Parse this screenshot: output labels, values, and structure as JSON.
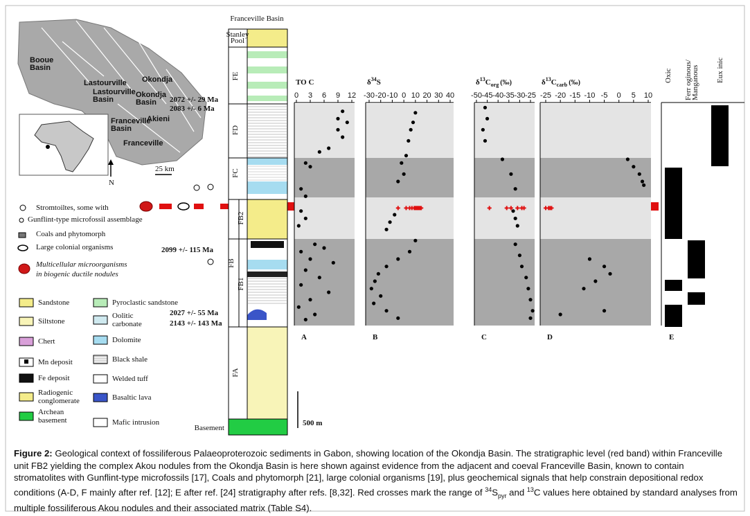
{
  "figure": {
    "map": {
      "labels": [
        [
          "Booue",
          "Basin"
        ],
        [
          "Lastourville"
        ],
        [
          "Lastourville",
          "Basin"
        ],
        [
          "Okondja"
        ],
        [
          "Okondja",
          "Basin"
        ],
        [
          "Akieni"
        ],
        [
          "Franceville",
          "Basin"
        ],
        [
          "Franceville"
        ]
      ],
      "scale": "25 km",
      "north": "N"
    },
    "column": {
      "title": "Franceville Basin",
      "units": [
        [
          "Stanley",
          "Pool"
        ],
        [
          "FE"
        ],
        [
          "FD"
        ],
        [
          "FC"
        ],
        [
          "FB2"
        ],
        [
          "FB"
        ],
        [
          "FB1"
        ],
        [
          "FA"
        ],
        [
          "Basement"
        ]
      ],
      "ages": [
        "2072 +/- 29 Ma",
        "2083 +/-  6 Ma",
        "2099 +/- 115 Ma",
        "2027 +/- 55 Ma",
        "2143 +/- 143 Ma"
      ],
      "scale_bar": "500 m"
    },
    "fossil_legend": [
      [
        "Stromtoiltes, some with"
      ],
      [
        "Gunflint-type microfossil assemblage"
      ],
      [
        "Coals and phytomorph"
      ],
      [
        "Large colonial organisms"
      ],
      [
        "Multicellular microorganisms",
        "in biogenic ductile  nodules"
      ]
    ],
    "lithology_legend": [
      [
        "Sandstone"
      ],
      [
        "Siltstone"
      ],
      [
        "Chert"
      ],
      [
        "Mn deposit"
      ],
      [
        "Fe deposit"
      ],
      [
        "Radiogenic",
        "conglomerate"
      ],
      [
        "Archean",
        "basement"
      ],
      [
        "Pyroclastic sandstone"
      ],
      [
        "Oolitic",
        "carbonate"
      ],
      [
        "Dolomite"
      ],
      [
        "Black shale"
      ],
      [
        "Welded tuff"
      ],
      [
        "Basaltic lava"
      ],
      [
        "Mafic intrusion"
      ]
    ],
    "ylim": [
      1500,
      4500
    ],
    "red_band_level": 3090,
    "panels": [
      {
        "letter": "A",
        "header": {
          "main": "TO C"
        },
        "xlim": [
          0,
          12
        ],
        "xticks": [
          0,
          3,
          6,
          9,
          12
        ],
        "points": [
          {
            "x": 10,
            "level": 4400
          },
          {
            "x": 9,
            "level": 4300
          },
          {
            "x": 11,
            "level": 4250
          },
          {
            "x": 9,
            "level": 4150
          },
          {
            "x": 10,
            "level": 4050
          },
          {
            "x": 7,
            "level": 3900
          },
          {
            "x": 5,
            "level": 3850
          },
          {
            "x": 2,
            "level": 3700
          },
          {
            "x": 3,
            "level": 3650
          },
          {
            "x": 1,
            "level": 3350
          },
          {
            "x": 2,
            "level": 3250
          },
          {
            "x": 1,
            "level": 3050
          },
          {
            "x": 2,
            "level": 2950
          },
          {
            "x": 0.5,
            "level": 2850
          },
          {
            "x": 4,
            "level": 2600
          },
          {
            "x": 6,
            "level": 2550
          },
          {
            "x": 1,
            "level": 2500
          },
          {
            "x": 3,
            "level": 2400
          },
          {
            "x": 8,
            "level": 2350
          },
          {
            "x": 2,
            "level": 2250
          },
          {
            "x": 5,
            "level": 2150
          },
          {
            "x": 1,
            "level": 2050
          },
          {
            "x": 7,
            "level": 1950
          },
          {
            "x": 3,
            "level": 1850
          },
          {
            "x": 0.5,
            "level": 1750
          },
          {
            "x": 4,
            "level": 1650
          },
          {
            "x": 2,
            "level": 1580
          }
        ],
        "red_crosses": []
      },
      {
        "letter": "B",
        "header": {
          "delta": "δ",
          "sup": "34",
          "main": "S"
        },
        "xlim": [
          -30,
          40
        ],
        "xticks": [
          -30,
          -20,
          -10,
          0,
          10,
          20,
          30,
          40
        ],
        "points": [
          {
            "x": 10,
            "level": 4380
          },
          {
            "x": 8,
            "level": 4250
          },
          {
            "x": 6,
            "level": 4150
          },
          {
            "x": 4,
            "level": 4000
          },
          {
            "x": 2,
            "level": 3800
          },
          {
            "x": -2,
            "level": 3700
          },
          {
            "x": 0,
            "level": 3550
          },
          {
            "x": -5,
            "level": 3450
          },
          {
            "x": -8,
            "level": 3000
          },
          {
            "x": -12,
            "level": 2900
          },
          {
            "x": -15,
            "level": 2800
          },
          {
            "x": 10,
            "level": 2650
          },
          {
            "x": 5,
            "level": 2500
          },
          {
            "x": -5,
            "level": 2400
          },
          {
            "x": -15,
            "level": 2300
          },
          {
            "x": -22,
            "level": 2200
          },
          {
            "x": -25,
            "level": 2100
          },
          {
            "x": -28,
            "level": 2000
          },
          {
            "x": -20,
            "level": 1900
          },
          {
            "x": -26,
            "level": 1800
          },
          {
            "x": -15,
            "level": 1700
          },
          {
            "x": -5,
            "level": 1600
          }
        ],
        "red_crosses": [
          -5,
          2,
          5,
          7,
          9,
          10,
          11,
          12,
          13,
          14,
          15
        ]
      },
      {
        "letter": "C",
        "header": {
          "delta": "δ",
          "sup": "13",
          "main": "C",
          "sub": "org",
          "unit": "(‰)"
        },
        "xlim": [
          -50,
          -25
        ],
        "xticks": [
          -50,
          -45,
          -40,
          -35,
          -30,
          -25
        ],
        "points": [
          {
            "x": -46,
            "level": 4450
          },
          {
            "x": -45,
            "level": 4300
          },
          {
            "x": -47,
            "level": 4150
          },
          {
            "x": -46,
            "level": 4000
          },
          {
            "x": -38,
            "level": 3750
          },
          {
            "x": -34,
            "level": 3550
          },
          {
            "x": -32,
            "level": 3350
          },
          {
            "x": -33,
            "level": 3050
          },
          {
            "x": -32,
            "level": 2950
          },
          {
            "x": -31,
            "level": 2850
          },
          {
            "x": -32,
            "level": 2600
          },
          {
            "x": -30,
            "level": 2450
          },
          {
            "x": -29,
            "level": 2300
          },
          {
            "x": -27,
            "level": 2150
          },
          {
            "x": -26,
            "level": 2000
          },
          {
            "x": -25,
            "level": 1850
          },
          {
            "x": -24,
            "level": 1700
          },
          {
            "x": -25,
            "level": 1600
          }
        ],
        "red_crosses": [
          -44,
          -36,
          -34,
          -31,
          -29,
          -28
        ]
      },
      {
        "letter": "D",
        "header": {
          "delta": "δ",
          "sup": "13",
          "main": "C",
          "sub": "carb",
          "unit": "(‰)"
        },
        "xlim": [
          -25,
          10
        ],
        "xticks": [
          -25,
          -20,
          -15,
          -10,
          -5,
          0,
          5,
          10
        ],
        "points": [
          {
            "x": 3,
            "level": 3750
          },
          {
            "x": 5,
            "level": 3650
          },
          {
            "x": 7,
            "level": 3550
          },
          {
            "x": 8,
            "level": 3450
          },
          {
            "x": 8.5,
            "level": 3400
          },
          {
            "x": -10,
            "level": 2400
          },
          {
            "x": -5,
            "level": 2300
          },
          {
            "x": -3,
            "level": 2200
          },
          {
            "x": -8,
            "level": 2100
          },
          {
            "x": -12,
            "level": 2000
          },
          {
            "x": -5,
            "level": 1700
          },
          {
            "x": -20,
            "level": 1650
          }
        ],
        "red_crosses": [
          -25,
          -24,
          -23.5,
          -23
        ]
      }
    ],
    "redox": {
      "letter": "E",
      "columns": [
        [
          "Oxic"
        ],
        [
          "Ferr oginous/",
          "Manganous"
        ],
        [
          "Eux inic"
        ]
      ]
    }
  },
  "caption": [
    {
      "b": "Figure 2:"
    },
    {
      "t": " Geological context of fossiliferous Palaeoproterozoic sediments in Gabon, showing location of the Okondja Basin. The stratigraphic level (red band) within Franceville unit FB2 yielding the complex Akou nodules from the Okondja Basin is here shown against evidence from the adjacent and coeval Franceville Basin, known to contain stromatolites with Gunflint-type microfossils [17], Coals and phytomorph [21], large colonial organisms [19], plus geochemical signals that help constrain depositional redox conditions (A-D, F mainly after ref. [12]; E after ref. [24] stratigraphy after refs. [8,32]. Red crosses mark the range of "
    },
    {
      "sup": "34"
    },
    {
      "t": "S"
    },
    {
      "sub": "pyr"
    },
    {
      "t": " and "
    },
    {
      "sup": "13"
    },
    {
      "t": "C values here obtained by standard analyses from multiple fossiliferous Akou nodules and their associated matrix (Table S4)."
    }
  ]
}
